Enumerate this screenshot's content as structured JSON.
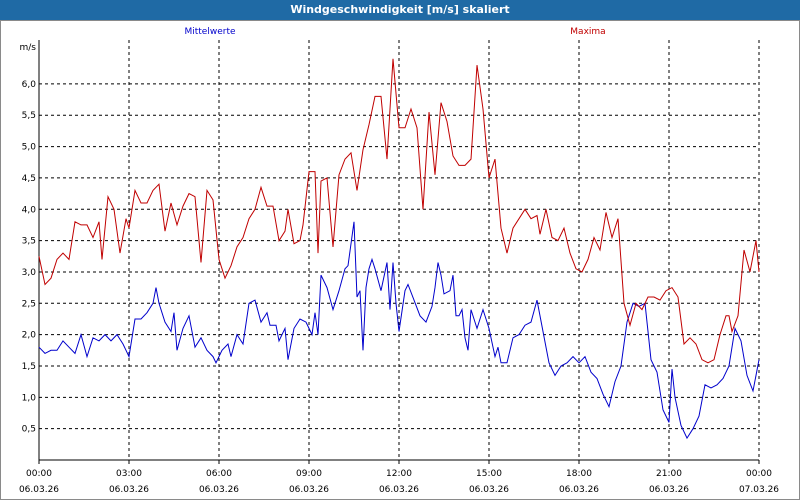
{
  "window": {
    "title": "Windgeschwindigkeit [m/s] skaliert"
  },
  "chart_data": {
    "type": "line",
    "title": "Windgeschwindigkeit [m/s] skaliert",
    "ylabel": "m/s",
    "xlabel": "",
    "ylim": [
      0,
      6.7
    ],
    "xlim": [
      0,
      24
    ],
    "yticks": [
      0.5,
      1.0,
      1.5,
      2.0,
      2.5,
      3.0,
      3.5,
      4.0,
      4.5,
      5.0,
      5.5,
      6.0
    ],
    "ytick_labels": [
      "0,5",
      "1,0",
      "1,5",
      "2,0",
      "2,5",
      "3,0",
      "3,5",
      "4,0",
      "4,5",
      "5,0",
      "5,5",
      "6,0"
    ],
    "xticks": [
      {
        "time": "00:00",
        "date": "06.03.26"
      },
      {
        "time": "03:00",
        "date": "06.03.26"
      },
      {
        "time": "06:00",
        "date": "06.03.26"
      },
      {
        "time": "09:00",
        "date": "06.03.26"
      },
      {
        "time": "12:00",
        "date": "06.03.26"
      },
      {
        "time": "15:00",
        "date": "06.03.26"
      },
      {
        "time": "18:00",
        "date": "06.03.26"
      },
      {
        "time": "21:00",
        "date": "06.03.26"
      },
      {
        "time": "00:00",
        "date": "07.03.26"
      }
    ],
    "grid": true,
    "legend": [
      {
        "name": "Mittelwerte",
        "color": "#0000cc",
        "position": "top-left"
      },
      {
        "name": "Maxima",
        "color": "#c00000",
        "position": "top-right"
      }
    ],
    "series": [
      {
        "name": "Mittelwerte",
        "color": "#0000cc",
        "points": [
          [
            0,
            1.8
          ],
          [
            0.2,
            1.7
          ],
          [
            0.4,
            1.75
          ],
          [
            0.6,
            1.75
          ],
          [
            0.8,
            1.9
          ],
          [
            1.0,
            1.8
          ],
          [
            1.2,
            1.7
          ],
          [
            1.4,
            2.0
          ],
          [
            1.6,
            1.65
          ],
          [
            1.8,
            1.95
          ],
          [
            2.0,
            1.9
          ],
          [
            2.2,
            2.0
          ],
          [
            2.4,
            1.9
          ],
          [
            2.6,
            2.0
          ],
          [
            2.8,
            1.85
          ],
          [
            3.0,
            1.65
          ],
          [
            3.2,
            2.25
          ],
          [
            3.4,
            2.25
          ],
          [
            3.6,
            2.35
          ],
          [
            3.8,
            2.5
          ],
          [
            3.9,
            2.75
          ],
          [
            4.0,
            2.5
          ],
          [
            4.2,
            2.2
          ],
          [
            4.4,
            2.05
          ],
          [
            4.5,
            2.35
          ],
          [
            4.6,
            1.75
          ],
          [
            4.8,
            2.1
          ],
          [
            5.0,
            2.3
          ],
          [
            5.2,
            1.8
          ],
          [
            5.4,
            1.95
          ],
          [
            5.6,
            1.75
          ],
          [
            5.8,
            1.65
          ],
          [
            5.9,
            1.55
          ],
          [
            6.1,
            1.75
          ],
          [
            6.3,
            1.85
          ],
          [
            6.4,
            1.65
          ],
          [
            6.6,
            2.0
          ],
          [
            6.8,
            1.85
          ],
          [
            7.0,
            2.5
          ],
          [
            7.2,
            2.55
          ],
          [
            7.4,
            2.2
          ],
          [
            7.6,
            2.35
          ],
          [
            7.7,
            2.15
          ],
          [
            7.9,
            2.15
          ],
          [
            8.0,
            1.9
          ],
          [
            8.2,
            2.1
          ],
          [
            8.3,
            1.6
          ],
          [
            8.5,
            2.1
          ],
          [
            8.7,
            2.25
          ],
          [
            8.9,
            2.2
          ],
          [
            9.1,
            2.0
          ],
          [
            9.2,
            2.35
          ],
          [
            9.3,
            2.0
          ],
          [
            9.4,
            2.95
          ],
          [
            9.6,
            2.75
          ],
          [
            9.8,
            2.4
          ],
          [
            10.0,
            2.7
          ],
          [
            10.2,
            3.05
          ],
          [
            10.3,
            3.1
          ],
          [
            10.5,
            3.8
          ],
          [
            10.6,
            2.6
          ],
          [
            10.7,
            2.7
          ],
          [
            10.8,
            1.75
          ],
          [
            10.9,
            2.75
          ],
          [
            11.0,
            3.05
          ],
          [
            11.1,
            3.2
          ],
          [
            11.2,
            3.05
          ],
          [
            11.4,
            2.7
          ],
          [
            11.6,
            3.15
          ],
          [
            11.7,
            2.4
          ],
          [
            11.8,
            3.15
          ],
          [
            11.9,
            2.5
          ],
          [
            12.0,
            2.05
          ],
          [
            12.2,
            2.7
          ],
          [
            12.3,
            2.8
          ],
          [
            12.5,
            2.55
          ],
          [
            12.7,
            2.3
          ],
          [
            12.9,
            2.2
          ],
          [
            13.1,
            2.45
          ],
          [
            13.2,
            2.75
          ],
          [
            13.3,
            3.15
          ],
          [
            13.4,
            2.95
          ],
          [
            13.5,
            2.65
          ],
          [
            13.7,
            2.7
          ],
          [
            13.8,
            2.95
          ],
          [
            13.9,
            2.3
          ],
          [
            14.0,
            2.3
          ],
          [
            14.1,
            2.4
          ],
          [
            14.2,
            1.95
          ],
          [
            14.3,
            1.75
          ],
          [
            14.4,
            2.4
          ],
          [
            14.6,
            2.1
          ],
          [
            14.8,
            2.4
          ],
          [
            15.0,
            2.1
          ],
          [
            15.2,
            1.65
          ],
          [
            15.3,
            1.8
          ],
          [
            15.4,
            1.55
          ],
          [
            15.6,
            1.55
          ],
          [
            15.8,
            1.95
          ],
          [
            16.0,
            2.0
          ],
          [
            16.2,
            2.15
          ],
          [
            16.4,
            2.2
          ],
          [
            16.6,
            2.55
          ],
          [
            16.8,
            2.05
          ],
          [
            17.0,
            1.55
          ],
          [
            17.2,
            1.35
          ],
          [
            17.4,
            1.5
          ],
          [
            17.6,
            1.55
          ],
          [
            17.8,
            1.65
          ],
          [
            18.0,
            1.55
          ],
          [
            18.2,
            1.65
          ],
          [
            18.4,
            1.4
          ],
          [
            18.6,
            1.3
          ],
          [
            18.8,
            1.05
          ],
          [
            19.0,
            0.85
          ],
          [
            19.2,
            1.25
          ],
          [
            19.4,
            1.5
          ],
          [
            19.6,
            2.2
          ],
          [
            19.8,
            2.5
          ],
          [
            20.0,
            2.45
          ],
          [
            20.2,
            2.5
          ],
          [
            20.4,
            1.6
          ],
          [
            20.6,
            1.4
          ],
          [
            20.8,
            0.8
          ],
          [
            21.0,
            0.6
          ],
          [
            21.1,
            1.45
          ],
          [
            21.2,
            1.0
          ],
          [
            21.4,
            0.55
          ],
          [
            21.6,
            0.35
          ],
          [
            21.8,
            0.5
          ],
          [
            22.0,
            0.7
          ],
          [
            22.2,
            1.2
          ],
          [
            22.4,
            1.15
          ],
          [
            22.6,
            1.2
          ],
          [
            22.8,
            1.3
          ],
          [
            23.0,
            1.5
          ],
          [
            23.2,
            2.1
          ],
          [
            23.4,
            1.9
          ],
          [
            23.6,
            1.35
          ],
          [
            23.8,
            1.1
          ],
          [
            23.9,
            1.35
          ],
          [
            24.0,
            1.6
          ]
        ]
      },
      {
        "name": "Maxima",
        "color": "#c00000",
        "points": [
          [
            0,
            3.25
          ],
          [
            0.2,
            2.8
          ],
          [
            0.4,
            2.9
          ],
          [
            0.6,
            3.2
          ],
          [
            0.8,
            3.3
          ],
          [
            1.0,
            3.2
          ],
          [
            1.2,
            3.8
          ],
          [
            1.4,
            3.75
          ],
          [
            1.6,
            3.75
          ],
          [
            1.8,
            3.55
          ],
          [
            2.0,
            3.8
          ],
          [
            2.1,
            3.2
          ],
          [
            2.3,
            4.2
          ],
          [
            2.5,
            4.0
          ],
          [
            2.7,
            3.3
          ],
          [
            2.9,
            3.85
          ],
          [
            3.0,
            3.7
          ],
          [
            3.2,
            4.3
          ],
          [
            3.4,
            4.1
          ],
          [
            3.6,
            4.1
          ],
          [
            3.8,
            4.3
          ],
          [
            4.0,
            4.4
          ],
          [
            4.2,
            3.65
          ],
          [
            4.4,
            4.1
          ],
          [
            4.6,
            3.75
          ],
          [
            4.8,
            4.05
          ],
          [
            5.0,
            4.25
          ],
          [
            5.2,
            4.2
          ],
          [
            5.4,
            3.15
          ],
          [
            5.6,
            4.3
          ],
          [
            5.8,
            4.15
          ],
          [
            6.0,
            3.2
          ],
          [
            6.2,
            2.9
          ],
          [
            6.4,
            3.1
          ],
          [
            6.6,
            3.4
          ],
          [
            6.8,
            3.55
          ],
          [
            7.0,
            3.85
          ],
          [
            7.2,
            4.0
          ],
          [
            7.4,
            4.35
          ],
          [
            7.6,
            4.05
          ],
          [
            7.8,
            4.05
          ],
          [
            8.0,
            3.5
          ],
          [
            8.2,
            3.65
          ],
          [
            8.3,
            4.0
          ],
          [
            8.5,
            3.45
          ],
          [
            8.7,
            3.5
          ],
          [
            8.8,
            3.75
          ],
          [
            9.0,
            4.6
          ],
          [
            9.2,
            4.6
          ],
          [
            9.3,
            3.3
          ],
          [
            9.4,
            4.45
          ],
          [
            9.6,
            4.5
          ],
          [
            9.8,
            3.4
          ],
          [
            10.0,
            4.55
          ],
          [
            10.2,
            4.8
          ],
          [
            10.4,
            4.9
          ],
          [
            10.6,
            4.3
          ],
          [
            10.8,
            4.95
          ],
          [
            11.0,
            5.35
          ],
          [
            11.2,
            5.8
          ],
          [
            11.4,
            5.8
          ],
          [
            11.6,
            4.8
          ],
          [
            11.8,
            6.4
          ],
          [
            12.0,
            5.3
          ],
          [
            12.2,
            5.3
          ],
          [
            12.4,
            5.6
          ],
          [
            12.6,
            5.3
          ],
          [
            12.8,
            4.0
          ],
          [
            13.0,
            5.55
          ],
          [
            13.2,
            4.55
          ],
          [
            13.4,
            5.7
          ],
          [
            13.6,
            5.4
          ],
          [
            13.8,
            4.85
          ],
          [
            14.0,
            4.7
          ],
          [
            14.2,
            4.7
          ],
          [
            14.4,
            4.8
          ],
          [
            14.6,
            6.3
          ],
          [
            14.8,
            5.6
          ],
          [
            15.0,
            4.5
          ],
          [
            15.2,
            4.8
          ],
          [
            15.4,
            3.7
          ],
          [
            15.6,
            3.3
          ],
          [
            15.8,
            3.7
          ],
          [
            16.0,
            3.85
          ],
          [
            16.2,
            4.0
          ],
          [
            16.4,
            3.85
          ],
          [
            16.6,
            3.9
          ],
          [
            16.7,
            3.6
          ],
          [
            16.9,
            4.0
          ],
          [
            17.1,
            3.55
          ],
          [
            17.3,
            3.5
          ],
          [
            17.5,
            3.7
          ],
          [
            17.7,
            3.3
          ],
          [
            17.9,
            3.05
          ],
          [
            18.1,
            3.0
          ],
          [
            18.3,
            3.2
          ],
          [
            18.5,
            3.55
          ],
          [
            18.7,
            3.35
          ],
          [
            18.9,
            3.95
          ],
          [
            19.1,
            3.55
          ],
          [
            19.3,
            3.85
          ],
          [
            19.5,
            2.5
          ],
          [
            19.7,
            2.15
          ],
          [
            19.9,
            2.5
          ],
          [
            20.1,
            2.4
          ],
          [
            20.3,
            2.6
          ],
          [
            20.5,
            2.6
          ],
          [
            20.7,
            2.55
          ],
          [
            20.9,
            2.7
          ],
          [
            21.1,
            2.75
          ],
          [
            21.3,
            2.6
          ],
          [
            21.5,
            1.85
          ],
          [
            21.7,
            1.95
          ],
          [
            21.9,
            1.85
          ],
          [
            22.1,
            1.6
          ],
          [
            22.3,
            1.55
          ],
          [
            22.5,
            1.6
          ],
          [
            22.7,
            2.0
          ],
          [
            22.9,
            2.3
          ],
          [
            23.0,
            2.3
          ],
          [
            23.1,
            2.05
          ],
          [
            23.3,
            2.3
          ],
          [
            23.5,
            3.35
          ],
          [
            23.7,
            3.0
          ],
          [
            23.9,
            3.5
          ],
          [
            24.0,
            3.0
          ]
        ]
      }
    ]
  }
}
